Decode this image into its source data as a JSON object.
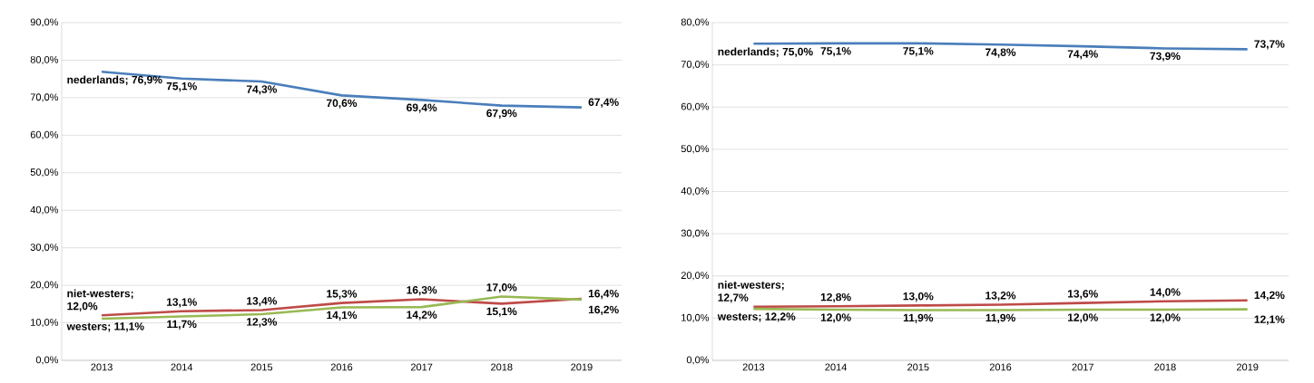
{
  "chart_data": [
    {
      "type": "line",
      "categories": [
        "2013",
        "2014",
        "2015",
        "2016",
        "2017",
        "2018",
        "2019"
      ],
      "ylim": [
        0,
        90
      ],
      "yticks": [
        {
          "value": 0,
          "label": "0,0%"
        },
        {
          "value": 10,
          "label": "10,0%"
        },
        {
          "value": 20,
          "label": "20,0%"
        },
        {
          "value": 30,
          "label": "30,0%"
        },
        {
          "value": 40,
          "label": "40,0%"
        },
        {
          "value": 50,
          "label": "50,0%"
        },
        {
          "value": 60,
          "label": "60,0%"
        },
        {
          "value": 70,
          "label": "70,0%"
        },
        {
          "value": 80,
          "label": "80,0%"
        },
        {
          "value": 90,
          "label": "90,0%"
        }
      ],
      "grid": "y",
      "legend": false,
      "series": [
        {
          "color": "#4a7ebb",
          "values": [
            76.9,
            75.1,
            74.3,
            70.6,
            69.4,
            67.9,
            67.4
          ],
          "value_labels": [
            "nederlands; 76,9%",
            "75,1%",
            "74,3%",
            "70,6%",
            "69,4%",
            "67,9%",
            "67,4%"
          ]
        },
        {
          "color": "#be4b48",
          "values": [
            12.0,
            13.1,
            13.4,
            15.3,
            16.3,
            15.1,
            16.4
          ],
          "value_labels": [
            "niet-westers; 12,0%",
            "13,1%",
            "13,4%",
            "15,3%",
            "16,3%",
            "15,1%",
            "16,4%"
          ]
        },
        {
          "color": "#98b954",
          "values": [
            11.1,
            11.7,
            12.3,
            14.1,
            14.2,
            17.0,
            16.2
          ],
          "value_labels": [
            "westers; 11,1%",
            "11,7%",
            "12,3%",
            "14,1%",
            "14,2%",
            "17,0%",
            "16,2%"
          ]
        }
      ]
    },
    {
      "type": "line",
      "categories": [
        "2013",
        "2014",
        "2015",
        "2016",
        "2017",
        "2018",
        "2019"
      ],
      "ylim": [
        0,
        80
      ],
      "yticks": [
        {
          "value": 0,
          "label": "0,0%"
        },
        {
          "value": 10,
          "label": "10,0%"
        },
        {
          "value": 20,
          "label": "20,0%"
        },
        {
          "value": 30,
          "label": "30,0%"
        },
        {
          "value": 40,
          "label": "40,0%"
        },
        {
          "value": 50,
          "label": "50,0%"
        },
        {
          "value": 60,
          "label": "60,0%"
        },
        {
          "value": 70,
          "label": "70,0%"
        },
        {
          "value": 80,
          "label": "80,0%"
        }
      ],
      "grid": "y",
      "legend": false,
      "series": [
        {
          "color": "#4a7ebb",
          "values": [
            75.0,
            75.1,
            75.1,
            74.8,
            74.4,
            73.9,
            73.7
          ],
          "value_labels": [
            "nederlands; 75,0%",
            "75,1%",
            "75,1%",
            "74,8%",
            "74,4%",
            "73,9%",
            "73,7%"
          ]
        },
        {
          "color": "#be4b48",
          "values": [
            12.7,
            12.8,
            13.0,
            13.2,
            13.6,
            14.0,
            14.2
          ],
          "value_labels": [
            "niet-westers; 12,7%",
            "12,8%",
            "13,0%",
            "13,2%",
            "13,6%",
            "14,0%",
            "14,2%"
          ]
        },
        {
          "color": "#98b954",
          "values": [
            12.2,
            12.0,
            11.9,
            11.9,
            12.0,
            12.0,
            12.1
          ],
          "value_labels": [
            "westers; 12,2%",
            "12,0%",
            "11,9%",
            "11,9%",
            "12,0%",
            "12,0%",
            "12,1%"
          ]
        }
      ]
    }
  ]
}
